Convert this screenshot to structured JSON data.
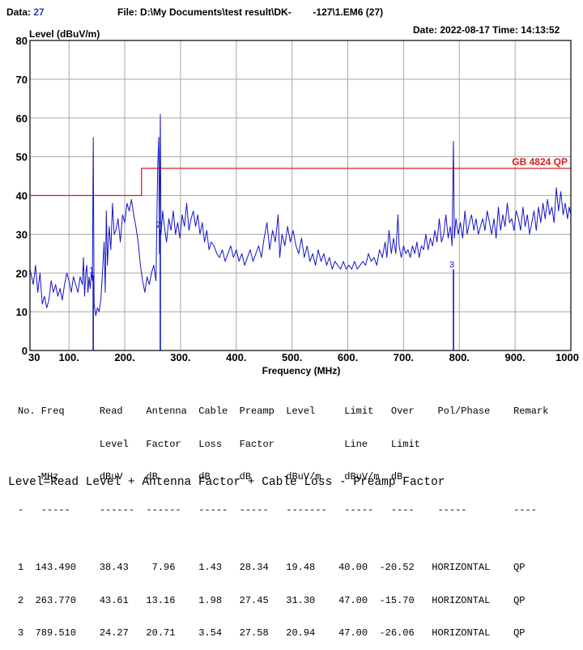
{
  "header": {
    "data_label": "Data:",
    "data_value": "27",
    "file_label": "File:",
    "file_value": "D:\\My Documents\\test result\\DK-",
    "file_tail": "-127\\1.EM6  (27)",
    "date_label": "Date:",
    "date_value": "2022-08-17",
    "time_label": "Time:",
    "time_value": "14:13:52"
  },
  "chart_data": {
    "type": "line",
    "ylabel": "Level (dBuV/m)",
    "xlabel": "Frequency (MHz)",
    "xlim": [
      30,
      1000
    ],
    "ylim": [
      0,
      80
    ],
    "x_ticks": [
      {
        "v": 30,
        "t": "30"
      },
      {
        "v": 100,
        "t": "100."
      },
      {
        "v": 200,
        "t": "200."
      },
      {
        "v": 300,
        "t": "300."
      },
      {
        "v": 400,
        "t": "400."
      },
      {
        "v": 500,
        "t": "500."
      },
      {
        "v": 600,
        "t": "600."
      },
      {
        "v": 700,
        "t": "700."
      },
      {
        "v": 800,
        "t": "800."
      },
      {
        "v": 900,
        "t": "900."
      },
      {
        "v": 1000,
        "t": "1000"
      }
    ],
    "y_ticks": [
      0,
      10,
      20,
      30,
      40,
      50,
      60,
      70,
      80
    ],
    "grid": true,
    "limit_line": {
      "name": "GB 4824 QP",
      "color": "#d81e1e",
      "points": [
        [
          30,
          40
        ],
        [
          230,
          40
        ],
        [
          230,
          47
        ],
        [
          1000,
          47
        ]
      ]
    },
    "series": [
      {
        "color": "#1414c8",
        "points": [
          [
            30,
            21
          ],
          [
            33,
            19
          ],
          [
            36,
            17
          ],
          [
            40,
            22
          ],
          [
            44,
            15
          ],
          [
            48,
            20
          ],
          [
            52,
            12
          ],
          [
            56,
            14
          ],
          [
            60,
            11
          ],
          [
            64,
            13
          ],
          [
            68,
            18
          ],
          [
            72,
            15
          ],
          [
            76,
            17
          ],
          [
            80,
            14
          ],
          [
            84,
            16
          ],
          [
            88,
            13
          ],
          [
            92,
            17
          ],
          [
            96,
            20
          ],
          [
            100,
            18
          ],
          [
            104,
            15
          ],
          [
            108,
            19
          ],
          [
            112,
            17
          ],
          [
            116,
            15
          ],
          [
            120,
            19
          ],
          [
            124,
            17
          ],
          [
            126,
            24
          ],
          [
            128,
            14
          ],
          [
            130,
            20
          ],
          [
            132,
            22
          ],
          [
            134,
            15
          ],
          [
            136,
            19
          ],
          [
            138,
            16
          ],
          [
            140,
            20
          ],
          [
            142,
            18
          ],
          [
            143.5,
            55
          ],
          [
            145,
            12
          ],
          [
            148,
            9
          ],
          [
            151,
            11
          ],
          [
            154,
            10
          ],
          [
            157,
            13
          ],
          [
            160,
            20
          ],
          [
            163,
            28
          ],
          [
            165,
            15
          ],
          [
            167,
            36
          ],
          [
            169,
            22
          ],
          [
            172,
            32
          ],
          [
            175,
            26
          ],
          [
            178,
            38
          ],
          [
            181,
            30
          ],
          [
            184,
            31
          ],
          [
            188,
            34
          ],
          [
            192,
            28
          ],
          [
            196,
            35
          ],
          [
            200,
            33
          ],
          [
            204,
            38
          ],
          [
            208,
            36
          ],
          [
            212,
            39
          ],
          [
            216,
            35
          ],
          [
            220,
            32
          ],
          [
            224,
            28
          ],
          [
            228,
            22
          ],
          [
            232,
            18
          ],
          [
            236,
            15
          ],
          [
            240,
            19
          ],
          [
            244,
            17
          ],
          [
            248,
            20
          ],
          [
            252,
            22
          ],
          [
            256,
            18
          ],
          [
            259,
            47
          ],
          [
            261,
            55
          ],
          [
            262,
            25
          ],
          [
            263.8,
            61
          ],
          [
            265,
            30
          ],
          [
            268,
            36
          ],
          [
            271,
            32
          ],
          [
            275,
            28
          ],
          [
            279,
            34
          ],
          [
            283,
            31
          ],
          [
            287,
            36
          ],
          [
            291,
            30
          ],
          [
            295,
            33
          ],
          [
            299,
            29
          ],
          [
            303,
            35
          ],
          [
            307,
            32
          ],
          [
            311,
            38
          ],
          [
            315,
            31
          ],
          [
            319,
            34
          ],
          [
            323,
            36
          ],
          [
            327,
            32
          ],
          [
            331,
            35
          ],
          [
            335,
            30
          ],
          [
            339,
            33
          ],
          [
            343,
            28
          ],
          [
            347,
            31
          ],
          [
            351,
            26
          ],
          [
            355,
            28
          ],
          [
            360,
            27
          ],
          [
            365,
            25
          ],
          [
            370,
            24
          ],
          [
            375,
            26
          ],
          [
            380,
            23
          ],
          [
            385,
            25
          ],
          [
            390,
            27
          ],
          [
            395,
            24
          ],
          [
            400,
            26
          ],
          [
            405,
            23
          ],
          [
            410,
            25
          ],
          [
            415,
            22
          ],
          [
            420,
            24
          ],
          [
            425,
            26
          ],
          [
            430,
            23
          ],
          [
            435,
            25
          ],
          [
            440,
            27
          ],
          [
            445,
            24
          ],
          [
            450,
            29
          ],
          [
            455,
            33
          ],
          [
            460,
            26
          ],
          [
            465,
            31
          ],
          [
            470,
            28
          ],
          [
            475,
            35
          ],
          [
            478,
            24
          ],
          [
            482,
            30
          ],
          [
            487,
            27
          ],
          [
            492,
            32
          ],
          [
            497,
            28
          ],
          [
            502,
            31
          ],
          [
            507,
            27
          ],
          [
            512,
            25
          ],
          [
            517,
            29
          ],
          [
            522,
            24
          ],
          [
            527,
            27
          ],
          [
            532,
            23
          ],
          [
            537,
            25
          ],
          [
            542,
            22
          ],
          [
            547,
            26
          ],
          [
            552,
            23
          ],
          [
            557,
            25
          ],
          [
            562,
            22
          ],
          [
            567,
            24
          ],
          [
            572,
            21
          ],
          [
            577,
            23
          ],
          [
            582,
            22
          ],
          [
            587,
            21
          ],
          [
            592,
            23
          ],
          [
            597,
            21
          ],
          [
            602,
            22
          ],
          [
            607,
            21
          ],
          [
            612,
            23
          ],
          [
            617,
            21
          ],
          [
            622,
            22
          ],
          [
            627,
            23
          ],
          [
            632,
            22
          ],
          [
            637,
            25
          ],
          [
            642,
            23
          ],
          [
            647,
            24
          ],
          [
            652,
            22
          ],
          [
            657,
            26
          ],
          [
            662,
            24
          ],
          [
            667,
            28
          ],
          [
            670,
            24
          ],
          [
            674,
            31
          ],
          [
            678,
            25
          ],
          [
            682,
            29
          ],
          [
            686,
            25
          ],
          [
            690,
            35
          ],
          [
            692,
            27
          ],
          [
            696,
            24
          ],
          [
            700,
            27
          ],
          [
            704,
            25
          ],
          [
            708,
            26
          ],
          [
            712,
            24
          ],
          [
            716,
            27
          ],
          [
            720,
            25
          ],
          [
            724,
            28
          ],
          [
            728,
            24
          ],
          [
            732,
            27
          ],
          [
            736,
            26
          ],
          [
            740,
            30
          ],
          [
            744,
            26
          ],
          [
            748,
            29
          ],
          [
            752,
            27
          ],
          [
            756,
            31
          ],
          [
            760,
            28
          ],
          [
            764,
            34
          ],
          [
            768,
            28
          ],
          [
            772,
            30
          ],
          [
            776,
            35
          ],
          [
            780,
            29
          ],
          [
            784,
            32
          ],
          [
            787,
            27
          ],
          [
            789.5,
            54
          ],
          [
            791,
            29
          ],
          [
            794,
            34
          ],
          [
            798,
            30
          ],
          [
            802,
            33
          ],
          [
            806,
            29
          ],
          [
            810,
            36
          ],
          [
            814,
            30
          ],
          [
            818,
            33
          ],
          [
            822,
            35
          ],
          [
            826,
            31
          ],
          [
            830,
            34
          ],
          [
            834,
            30
          ],
          [
            838,
            32
          ],
          [
            842,
            34
          ],
          [
            846,
            31
          ],
          [
            850,
            36
          ],
          [
            854,
            33
          ],
          [
            858,
            30
          ],
          [
            862,
            34
          ],
          [
            866,
            29
          ],
          [
            870,
            37
          ],
          [
            874,
            31
          ],
          [
            878,
            35
          ],
          [
            882,
            32
          ],
          [
            886,
            38
          ],
          [
            890,
            33
          ],
          [
            894,
            34
          ],
          [
            898,
            31
          ],
          [
            902,
            36
          ],
          [
            906,
            34
          ],
          [
            910,
            31
          ],
          [
            914,
            37
          ],
          [
            918,
            32
          ],
          [
            922,
            35
          ],
          [
            926,
            30
          ],
          [
            930,
            33
          ],
          [
            934,
            36
          ],
          [
            938,
            31
          ],
          [
            942,
            37
          ],
          [
            946,
            33
          ],
          [
            950,
            38
          ],
          [
            954,
            34
          ],
          [
            958,
            39
          ],
          [
            962,
            35
          ],
          [
            966,
            37
          ],
          [
            970,
            33
          ],
          [
            974,
            42
          ],
          [
            978,
            36
          ],
          [
            982,
            41
          ],
          [
            986,
            35
          ],
          [
            990,
            38
          ],
          [
            994,
            34
          ],
          [
            997,
            37
          ],
          [
            1000,
            35
          ]
        ]
      }
    ],
    "markers": [
      {
        "label": "1",
        "x": 143.49,
        "y": 19.48
      },
      {
        "label": "2",
        "x": 263.77,
        "y": 31.3
      },
      {
        "label": "3",
        "x": 789.51,
        "y": 20.94
      }
    ]
  },
  "table": {
    "header_lines": [
      "No. Freq      Read    Antenna  Cable  Preamp  Level     Limit   Over    Pol/Phase    Remark",
      "              Level   Factor   Loss   Factor            Line    Limit",
      "    MHz       dBuV    dB       dB     dB      dBuV/m    dBuV/m  dB",
      "-   -----     ------  ------   -----  -----   -------   -----   ----    -----        ----"
    ],
    "rows": [
      "1  143.490    38.43    7.96    1.43   28.34   19.48    40.00  -20.52   HORIZONTAL    QP",
      "2  263.770    43.61   13.16    1.98   27.45   31.30    47.00  -15.70   HORIZONTAL    QP",
      "3  789.510    24.27   20.71    3.54   27.58   20.94    47.00  -26.06   HORIZONTAL    QP"
    ]
  },
  "formula": "Level=Read Level + Antenna Factor + Cable Loss - Preamp Factor"
}
